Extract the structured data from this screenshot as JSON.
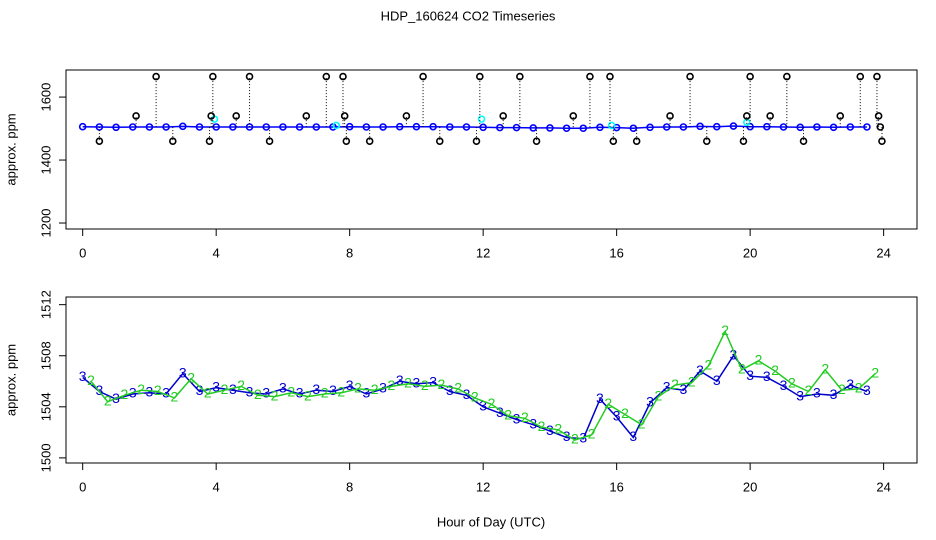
{
  "chart_data": [
    {
      "type": "scatter",
      "title": "HDP_160624  CO2 Timeseries",
      "ylabel": "approx. ppm",
      "xlim": [
        -0.5,
        25
      ],
      "xticks": [
        0,
        4,
        8,
        12,
        16,
        20,
        24
      ],
      "ylim": [
        1181,
        1686
      ],
      "yticks": [
        1200,
        1400,
        1600
      ],
      "series": [
        {
          "color": "#0000ff",
          "marker": "circle",
          "line": true,
          "x": [
            0,
            0.5,
            1,
            1.5,
            2,
            2.5,
            3,
            3.5,
            4,
            4.5,
            5,
            5.5,
            6,
            6.5,
            7,
            7.5,
            8,
            8.5,
            9,
            9.5,
            10,
            10.5,
            11,
            11.5,
            12,
            12.5,
            13,
            13.5,
            14,
            14.5,
            15,
            15.5,
            16,
            16.5,
            17,
            17.5,
            18,
            18.5,
            19,
            19.5,
            20,
            20.5,
            21,
            21.5,
            22,
            22.5,
            23,
            23.5
          ],
          "values": [
            1506,
            1505,
            1504,
            1505,
            1505,
            1505,
            1507,
            1505,
            1505,
            1505,
            1505,
            1505,
            1505,
            1505,
            1505,
            1505,
            1506,
            1505,
            1505,
            1506,
            1506,
            1506,
            1505,
            1505,
            1504,
            1503,
            1503,
            1502,
            1502,
            1501,
            1501,
            1504,
            1503,
            1501,
            1504,
            1505,
            1505,
            1507,
            1506,
            1508,
            1506,
            1506,
            1505,
            1504,
            1505,
            1504,
            1505,
            1505
          ]
        },
        {
          "color": "#00ffff",
          "marker": "circle",
          "x": [
            3.95,
            7.6,
            11.95,
            15.85,
            19.9
          ],
          "values": [
            1530,
            1510,
            1530,
            1510,
            1520
          ]
        },
        {
          "color": "#000000",
          "marker": "circle",
          "stems": true,
          "x": [
            0.5,
            1.6,
            2.2,
            2.7,
            3.8,
            3.85,
            3.9,
            4.6,
            5.0,
            5.6,
            6.7,
            7.3,
            7.8,
            7.85,
            7.9,
            8.6,
            9.7,
            10.2,
            10.7,
            11.8,
            11.9,
            12.6,
            13.1,
            13.6,
            14.7,
            15.2,
            15.8,
            15.9,
            16.6,
            17.6,
            18.2,
            18.7,
            19.8,
            19.9,
            20.0,
            20.6,
            21.1,
            21.6,
            22.7,
            23.3,
            23.8,
            23.85,
            23.9,
            23.95
          ],
          "values": [
            1460,
            1540,
            1665,
            1460,
            1460,
            1540,
            1665,
            1540,
            1665,
            1460,
            1540,
            1665,
            1665,
            1540,
            1460,
            1460,
            1540,
            1665,
            1460,
            1460,
            1665,
            1540,
            1665,
            1460,
            1540,
            1665,
            1665,
            1460,
            1460,
            1540,
            1665,
            1460,
            1460,
            1540,
            1665,
            1540,
            1665,
            1460,
            1540,
            1665,
            1665,
            1540,
            1505,
            1460
          ]
        }
      ]
    },
    {
      "type": "scatter",
      "ylabel": "approx. ppm",
      "xlabel": "Hour of Day (UTC)",
      "xlim": [
        -0.5,
        25
      ],
      "xticks": [
        0,
        4,
        8,
        12,
        16,
        20,
        24
      ],
      "ylim": [
        1499.6,
        1512.6
      ],
      "yticks": [
        1500,
        1504,
        1508,
        1512
      ],
      "series": [
        {
          "color": "#0000cd",
          "marker": "3",
          "line": true,
          "x": [
            0,
            0.5,
            1,
            1.5,
            2,
            2.5,
            3,
            3.5,
            4,
            4.5,
            5,
            5.5,
            6,
            6.5,
            7,
            7.5,
            8,
            8.5,
            9,
            9.5,
            10,
            10.5,
            11,
            11.5,
            12,
            12.5,
            13,
            13.5,
            14,
            14.5,
            15,
            15.5,
            16,
            16.5,
            17,
            17.5,
            18,
            18.5,
            19,
            19.5,
            20,
            20.5,
            21,
            21.5,
            22,
            22.5,
            23,
            23.5
          ],
          "values": [
            1506.3,
            1505.2,
            1504.6,
            1505.0,
            1505.1,
            1505.0,
            1506.6,
            1505.2,
            1505.5,
            1505.3,
            1505.1,
            1505.0,
            1505.4,
            1505.0,
            1505.3,
            1505.2,
            1505.6,
            1505.0,
            1505.4,
            1506.0,
            1505.8,
            1505.9,
            1505.2,
            1504.9,
            1504.0,
            1503.5,
            1503.0,
            1502.6,
            1502.1,
            1501.6,
            1501.5,
            1504.6,
            1503.2,
            1501.6,
            1504.3,
            1505.5,
            1505.3,
            1506.8,
            1506.0,
            1508.0,
            1506.4,
            1506.3,
            1505.6,
            1504.8,
            1505.0,
            1504.9,
            1505.7,
            1505.2
          ]
        },
        {
          "color": "#22cc22",
          "marker": "2",
          "line": true,
          "x": [
            0.25,
            0.75,
            1.25,
            1.75,
            2.25,
            2.75,
            3.25,
            3.75,
            4.25,
            4.75,
            5.25,
            5.75,
            6.25,
            6.75,
            7.25,
            7.75,
            8.25,
            8.75,
            9.25,
            9.75,
            10.25,
            10.75,
            11.25,
            11.75,
            12.25,
            12.75,
            13.25,
            13.75,
            14.25,
            14.75,
            15.25,
            15.75,
            16.25,
            16.75,
            17.25,
            17.75,
            18.25,
            18.75,
            19.25,
            19.75,
            20.25,
            20.75,
            21.25,
            21.75,
            22.25,
            22.75,
            23.25,
            23.75
          ],
          "values": [
            1506.0,
            1504.4,
            1504.9,
            1505.3,
            1505.2,
            1504.7,
            1506.2,
            1505.0,
            1505.3,
            1505.6,
            1504.9,
            1504.8,
            1505.1,
            1504.8,
            1505.0,
            1505.1,
            1505.4,
            1505.3,
            1505.6,
            1505.8,
            1505.6,
            1505.7,
            1505.4,
            1504.7,
            1504.2,
            1503.3,
            1503.1,
            1502.4,
            1502.2,
            1501.4,
            1501.8,
            1504.2,
            1503.4,
            1502.6,
            1504.8,
            1505.7,
            1505.9,
            1507.2,
            1509.9,
            1506.9,
            1507.6,
            1506.8,
            1505.8,
            1505.2,
            1506.9,
            1505.3,
            1505.4,
            1506.6
          ]
        }
      ]
    }
  ]
}
